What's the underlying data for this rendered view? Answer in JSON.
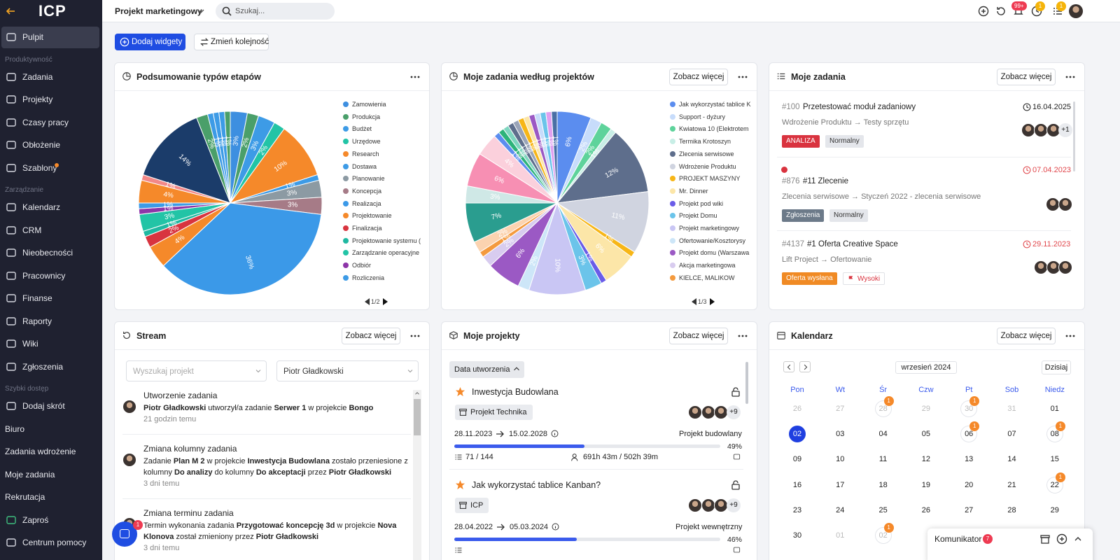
{
  "sidebar": {
    "logo": "ICP",
    "items": [
      {
        "label": "Pulpit",
        "kind": "item",
        "active": true
      },
      {
        "label": "Produktywność",
        "kind": "section"
      },
      {
        "label": "Zadania",
        "kind": "item"
      },
      {
        "label": "Projekty",
        "kind": "item"
      },
      {
        "label": "Czasy pracy",
        "kind": "item"
      },
      {
        "label": "Obłożenie",
        "kind": "item"
      },
      {
        "label": "Szablony",
        "kind": "item",
        "dot_color": "#f5892a"
      },
      {
        "label": "Zarządzanie",
        "kind": "section"
      },
      {
        "label": "Kalendarz",
        "kind": "item"
      },
      {
        "label": "CRM",
        "kind": "item"
      },
      {
        "label": "Nieobecności",
        "kind": "item"
      },
      {
        "label": "Pracownicy",
        "kind": "item"
      },
      {
        "label": "Finanse",
        "kind": "item"
      },
      {
        "label": "Raporty",
        "kind": "item"
      },
      {
        "label": "Wiki",
        "kind": "item"
      },
      {
        "label": "Zgłoszenia",
        "kind": "item"
      },
      {
        "label": "Szybki dostęp",
        "kind": "section"
      },
      {
        "label": "Dodaj skrót",
        "kind": "item"
      },
      {
        "label": "Biuro",
        "kind": "plain"
      },
      {
        "label": "Zadania wdrożenie",
        "kind": "plain"
      },
      {
        "label": "Moje zadania",
        "kind": "plain"
      },
      {
        "label": "Rekrutacja",
        "kind": "plain"
      },
      {
        "label": "Zaproś",
        "kind": "item",
        "color": "#3fbf7f"
      },
      {
        "label": "Centrum pomocy",
        "kind": "item"
      }
    ]
  },
  "topbar": {
    "project": "Projekt marketingowy",
    "search": "Szukaj...",
    "notifications": "99+",
    "timer_badge": 1,
    "tasks_badge": 1
  },
  "toolbar": {
    "add": "Dodaj widgety",
    "reorder": "Zmień kolejność"
  },
  "chart_data": [
    {
      "type": "pie",
      "title": "Podsumowanie typów etapów",
      "legend_page": "1/2",
      "categories": [
        "Zamowienia",
        "Produkcja",
        "Budżet",
        "Urzędowe",
        "Research",
        "Dostawa",
        "Planowanie",
        "Koncepcja",
        "Realizacja",
        "Projektowanie",
        "Finalizacja",
        "Projektowanie systemu (",
        "Zarządzanie operacyjne",
        "Odbiór",
        "Rozliczenia",
        null,
        null,
        null,
        null,
        null,
        null,
        null,
        null
      ],
      "values": [
        3,
        2,
        3,
        2,
        10,
        1,
        3,
        3,
        36,
        4,
        2,
        1,
        3,
        1,
        1,
        4,
        1,
        14,
        2,
        1,
        1,
        1,
        1
      ],
      "value_labels": [
        "3%",
        "2%",
        "3%",
        "2%",
        "10%",
        "1%",
        "3%",
        "3%",
        "36%",
        "4%",
        "2%",
        "1%",
        "3%",
        "1%",
        "1%",
        "4%",
        "1%",
        "14%",
        "2%",
        "1%",
        "1%",
        "1%",
        "1%"
      ],
      "colors": [
        "#3d8fe0",
        "#4a9f6a",
        "#3d9be6",
        "#22c4a6",
        "#f5892a",
        "#3d9be6",
        "#8c9aa3",
        "#a67b87",
        "#3b99e8",
        "#f5892a",
        "#d8343f",
        "#1fb8a1",
        "#22c4a6",
        "#8d35a8",
        "#3d9be6",
        "#f5892a",
        "#f28888",
        "#1b3c6a",
        "#4a9f6a",
        "#3d9be6",
        "#3d9be6",
        "#3d9be6",
        "#4a9f6a"
      ]
    },
    {
      "type": "pie",
      "title": "Moje zadania według projektów",
      "more": "Zobacz więcej",
      "legend_page": "1/3",
      "categories": [
        "Jak wykorzystać tablice K",
        "Support - dyżury",
        "Kwiatowa 10 (Elektrotem",
        "Termika Krotoszyn",
        "Zlecenia serwisowe",
        "Wdrożenie Produktu",
        "PROJEKT MASZYNY",
        "Mr. Dinner",
        "Projekt pod wiki",
        "Projekt Domu",
        "Projekt marketingowy",
        "Ofertowanie/Kosztorysy",
        "Projekt domu (Warszawa",
        "Akcja marketingowa",
        "KIELCE, MALIKOW",
        null,
        null,
        null,
        null,
        null,
        null,
        null,
        null,
        null,
        null,
        null,
        null,
        null,
        null,
        null,
        null,
        null
      ],
      "values": [
        6,
        2,
        2,
        1,
        12,
        11,
        1,
        6,
        1,
        3,
        10,
        2,
        6,
        2,
        1,
        2,
        7,
        3,
        6,
        4,
        1,
        1,
        1,
        1,
        1,
        1,
        1,
        1,
        1,
        1,
        1,
        1
      ],
      "value_labels": [
        "6%",
        "2%",
        "2%",
        "1%",
        "12%",
        "11%",
        "1%",
        "6%",
        "1%",
        "3%",
        "10%",
        "2%",
        "6%",
        "2%",
        "1%",
        "2%",
        "7%",
        "3%",
        "6%",
        "4%",
        "1%",
        "1%",
        "1%",
        "1%",
        "1%",
        "1%",
        "1%",
        "1%",
        "1%",
        "1%",
        "1%",
        "1%"
      ],
      "colors": [
        "#5b8def",
        "#c7dcfb",
        "#5ed39b",
        "#c8eee6",
        "#5e6e8c",
        "#d0d4e0",
        "#f7b617",
        "#fce6a8",
        "#6a5ce8",
        "#6bc4ea",
        "#c9c6f4",
        "#cde6f8",
        "#9b59c4",
        "#d8ccef",
        "#f49a3e",
        "#fbd3b0",
        "#2a9d8f",
        "#cfe8e6",
        "#f78fb3",
        "#fbd0dc",
        "#5b8def",
        "#2db37a",
        "#7fd6c0",
        "#5e6e8c",
        "#9aa4b8",
        "#f7b617",
        "#fce6a8",
        "#9b59c4",
        "#c7dcfb",
        "#6bc4ea",
        "#e0a0f0",
        "#4a6fa5"
      ]
    }
  ],
  "tasks_widget": {
    "title": "Moje zadania",
    "more": "Zobacz więcej",
    "tasks": [
      {
        "id": "#100",
        "title": "Przetestować moduł zadaniowy",
        "date": "16.04.2025",
        "overdue": false,
        "path": "Wdrożenie Produktu → Testy sprzętu",
        "extra": "+1",
        "tags": [
          {
            "text": "ANALIZA",
            "bg": "#d9333f",
            "fg": "#ffffff"
          },
          {
            "text": "Normalny",
            "bg": "#e4e6eb",
            "fg": "#333333"
          }
        ]
      },
      {
        "id": "#876",
        "title": "#11 Zlecenie",
        "date": "07.04.2023",
        "overdue": true,
        "marker_color": "#d9333f",
        "path": "Zlecenia serwisowe → Styczeń 2022 - zlecenia serwisowe",
        "tags": [
          {
            "text": "Zgłoszenia",
            "bg": "#6c7a89",
            "fg": "#ffffff"
          },
          {
            "text": "Normalny",
            "bg": "#e4e6eb",
            "fg": "#333333"
          }
        ]
      },
      {
        "id": "#4137",
        "title": "#1 Oferta Creative Space",
        "date": "29.11.2023",
        "overdue": true,
        "path": "Lift Project → Ofertowanie",
        "tags": [
          {
            "text": "Oferta wysłana",
            "bg": "#f08a24",
            "fg": "#ffffff"
          },
          {
            "text": "Wysoki",
            "bg": "#ffffff",
            "fg": "#d9333f",
            "flag": true
          }
        ]
      }
    ]
  },
  "stream_widget": {
    "title": "Stream",
    "more": "Zobacz więcej",
    "search": "Wyszukaj projekt",
    "user": "Piotr Gładkowski",
    "chat_badge": 1,
    "entries": [
      {
        "title": "Utworzenie zadania",
        "time": "21 godzin temu",
        "parts": [
          {
            "text": "Piotr Gładkowski",
            "bold": true
          },
          {
            "text": " utworzył/a zadanie ",
            "bold": false
          },
          {
            "text": "Serwer 1",
            "bold": true
          },
          {
            "text": " w projekcie ",
            "bold": false
          },
          {
            "text": "Bongo",
            "bold": true
          }
        ]
      },
      {
        "title": "Zmiana kolumny zadania",
        "time": "3 dni temu",
        "parts": [
          {
            "text": "Zadanie ",
            "bold": false
          },
          {
            "text": "Plan M 2",
            "bold": true
          },
          {
            "text": " w projekcie ",
            "bold": false
          },
          {
            "text": "Inwestycja Budowlana",
            "bold": true
          },
          {
            "text": " zostało przeniesione z kolumny ",
            "bold": false
          },
          {
            "text": "Do analizy",
            "bold": true
          },
          {
            "text": " do kolumny ",
            "bold": false
          },
          {
            "text": "Do akceptacji",
            "bold": true
          },
          {
            "text": " przez ",
            "bold": false
          },
          {
            "text": "Piotr Gładkowski",
            "bold": true
          }
        ]
      },
      {
        "title": "Zmiana terminu zadania",
        "time": "3 dni temu",
        "parts": [
          {
            "text": "Termin wykonania zadania ",
            "bold": false
          },
          {
            "text": "Przygotować koncepcję 3d",
            "bold": true
          },
          {
            "text": " w projekcie ",
            "bold": false
          },
          {
            "text": "Nova Klonova",
            "bold": true
          },
          {
            "text": " został zmieniony przez ",
            "bold": false
          },
          {
            "text": "Piotr Gładkowski",
            "bold": true
          }
        ]
      }
    ]
  },
  "projects_widget": {
    "title": "Moje projekty",
    "more": "Zobacz więcej",
    "sort": "Data utworzenia",
    "projects": [
      {
        "name": "Inwestycja Budowlana",
        "client": "Projekt Technika",
        "start": "28.11.2023",
        "end": "15.02.2028",
        "type": "Projekt budowlany",
        "progress": 49,
        "progress_label": "49%",
        "extra": "+9",
        "tasks": "71 / 144",
        "time": "691h 43m / 502h 39m"
      },
      {
        "name": "Jak wykorzystać tablice Kanban?",
        "client": "ICP",
        "start": "28.04.2022",
        "end": "05.03.2024",
        "type": "Projekt wewnętrzny",
        "progress": 46,
        "progress_label": "46%",
        "extra": "+9"
      }
    ]
  },
  "calendar_widget": {
    "title": "Kalendarz",
    "more": "Zobacz więcej",
    "month": "wrzesień 2024",
    "today": "Dzisiaj",
    "weekdays": [
      "Pon",
      "Wt",
      "Śr",
      "Czw",
      "Pt",
      "Sob",
      "Niedz"
    ],
    "weeks": [
      [
        {
          "d": "26",
          "other": true
        },
        {
          "d": "27",
          "other": true
        },
        {
          "d": "28",
          "other": true,
          "badge": 1
        },
        {
          "d": "29",
          "other": true
        },
        {
          "d": "30",
          "other": true,
          "badge": 1
        },
        {
          "d": "31",
          "other": true
        },
        {
          "d": "01"
        }
      ],
      [
        {
          "d": "02",
          "today": true
        },
        {
          "d": "03"
        },
        {
          "d": "04"
        },
        {
          "d": "05"
        },
        {
          "d": "06",
          "badge": 1
        },
        {
          "d": "07"
        },
        {
          "d": "08",
          "badge": 1
        }
      ],
      [
        {
          "d": "09"
        },
        {
          "d": "10"
        },
        {
          "d": "11"
        },
        {
          "d": "12"
        },
        {
          "d": "13"
        },
        {
          "d": "14"
        },
        {
          "d": "15"
        }
      ],
      [
        {
          "d": "16"
        },
        {
          "d": "17"
        },
        {
          "d": "18"
        },
        {
          "d": "19"
        },
        {
          "d": "20"
        },
        {
          "d": "21"
        },
        {
          "d": "22",
          "badge": 1
        }
      ],
      [
        {
          "d": "23"
        },
        {
          "d": "24"
        },
        {
          "d": "25"
        },
        {
          "d": "26"
        },
        {
          "d": "27"
        },
        {
          "d": "28"
        },
        {
          "d": "29"
        }
      ],
      [
        {
          "d": "30"
        },
        {
          "d": "01",
          "other": true
        },
        {
          "d": "02",
          "other": true,
          "badge": 1
        }
      ]
    ]
  },
  "messenger": {
    "label": "Komunikator",
    "badge": 7
  }
}
